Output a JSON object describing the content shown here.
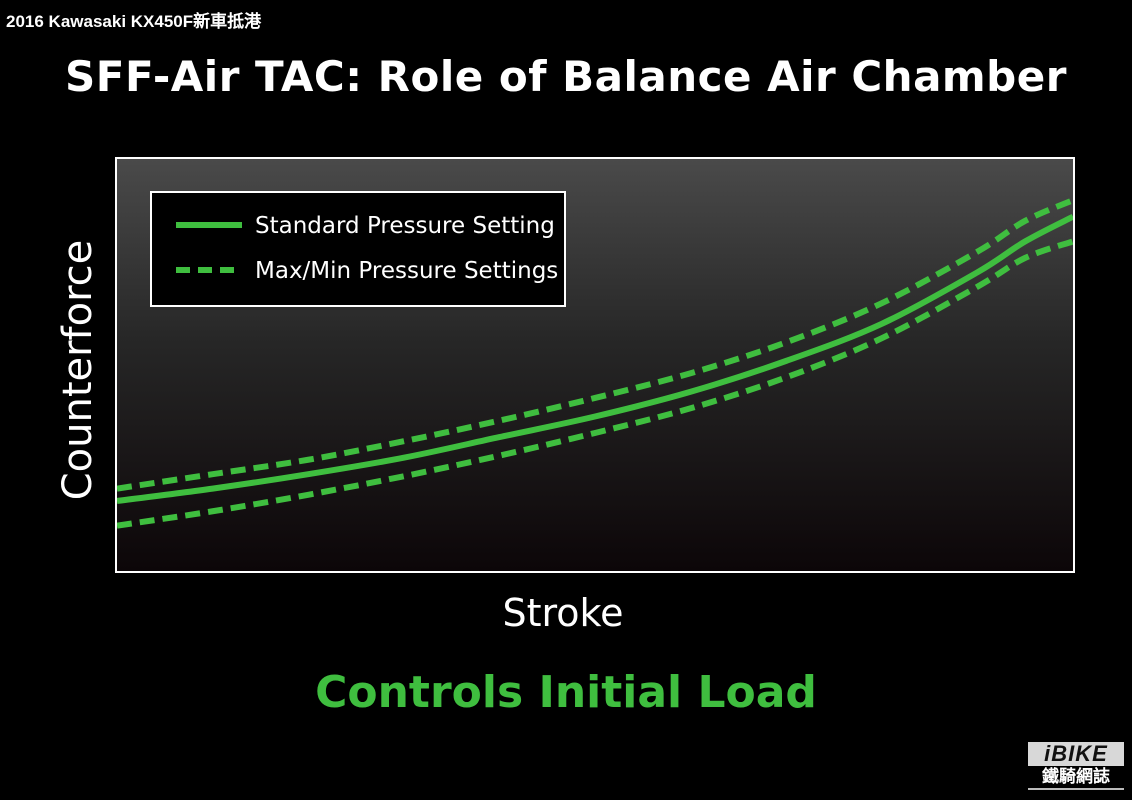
{
  "caption": "2016 Kawasaki KX450F新車抵港",
  "slide_title": "SFF-Air TAC: Role of Balance Air Chamber",
  "subtitle": "Controls Initial Load",
  "logo": {
    "top": "iBIKE",
    "bottom": "鐵騎網誌"
  },
  "colors": {
    "accent_green": "#3fbe3f",
    "background": "#000000",
    "plot_border": "#ffffff"
  },
  "chart_data": {
    "type": "line",
    "title": "SFF-Air TAC: Role of Balance Air Chamber",
    "xlabel": "Stroke",
    "ylabel": "Counterforce",
    "xlim": [
      0,
      1
    ],
    "ylim": [
      0,
      1
    ],
    "grid": false,
    "legend_position": "top-left",
    "legend": [
      {
        "label": "Standard Pressure Setting",
        "style": "solid"
      },
      {
        "label": "Max/Min Pressure Settings",
        "style": "dashed"
      }
    ],
    "series": [
      {
        "style": "dashed",
        "x": [
          0,
          0.1,
          0.2,
          0.3,
          0.4,
          0.5,
          0.6,
          0.7,
          0.8,
          0.9,
          0.95,
          1.0
        ],
        "y": [
          0.2,
          0.235,
          0.27,
          0.315,
          0.365,
          0.42,
          0.48,
          0.555,
          0.65,
          0.775,
          0.85,
          0.9
        ]
      },
      {
        "style": "solid",
        "x": [
          0,
          0.1,
          0.2,
          0.3,
          0.4,
          0.5,
          0.6,
          0.7,
          0.8,
          0.9,
          0.95,
          1.0
        ],
        "y": [
          0.17,
          0.2,
          0.235,
          0.275,
          0.325,
          0.375,
          0.435,
          0.51,
          0.6,
          0.725,
          0.8,
          0.86
        ]
      },
      {
        "style": "dashed",
        "x": [
          0,
          0.1,
          0.2,
          0.3,
          0.4,
          0.5,
          0.6,
          0.7,
          0.8,
          0.9,
          0.95,
          1.0
        ],
        "y": [
          0.11,
          0.145,
          0.185,
          0.23,
          0.28,
          0.335,
          0.395,
          0.47,
          0.565,
          0.69,
          0.76,
          0.8
        ]
      }
    ]
  }
}
